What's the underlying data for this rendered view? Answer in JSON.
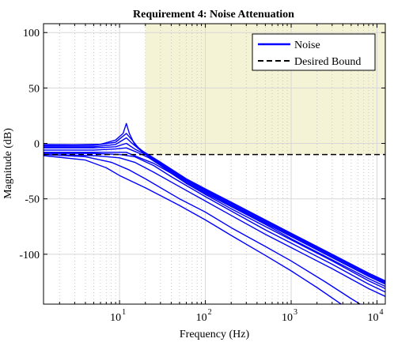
{
  "chart_data": {
    "type": "line",
    "title": "Requirement 4: Noise Attenuation",
    "xlabel": "Frequency (Hz)",
    "ylabel": "Magnitude (dB)",
    "xscale": "log",
    "xlim": [
      1.3,
      12500
    ],
    "ylim": [
      -145,
      108
    ],
    "grid": true,
    "legend_position": "top-right",
    "y_ticks": [
      {
        "value": 100,
        "label": "100"
      },
      {
        "value": 50,
        "label": "50"
      },
      {
        "value": 0,
        "label": "0"
      },
      {
        "value": -50,
        "label": "-50"
      },
      {
        "value": -100,
        "label": "-100"
      }
    ],
    "x_ticks": [
      {
        "value": 10,
        "label": "10",
        "exp": "1"
      },
      {
        "value": 100,
        "label": "10",
        "exp": "2"
      },
      {
        "value": 1000,
        "label": "10",
        "exp": "3"
      },
      {
        "value": 10000,
        "label": "10",
        "exp": "4"
      }
    ],
    "shaded_region": {
      "x_from": 20,
      "x_to": 12500,
      "y_from": -10,
      "y_to": 108,
      "color": "#f5f3d6"
    },
    "bound": {
      "name": "Desired Bound",
      "y": -10,
      "color": "#000000",
      "dash": true
    },
    "noise_color": "#0000ff",
    "series": [
      {
        "name": "Noise",
        "points": [
          [
            1.3,
            -1
          ],
          [
            3,
            -1.2
          ],
          [
            6,
            -0.8
          ],
          [
            9,
            3
          ],
          [
            11,
            9
          ],
          [
            12,
            18
          ],
          [
            13,
            9
          ],
          [
            15,
            -1
          ],
          [
            20,
            -9
          ],
          [
            30,
            -17
          ],
          [
            60,
            -32
          ],
          [
            100,
            -41
          ],
          [
            200,
            -53
          ],
          [
            500,
            -69
          ],
          [
            1000,
            -81
          ],
          [
            3000,
            -100
          ],
          [
            8000,
            -117
          ],
          [
            12500,
            -124
          ]
        ]
      },
      {
        "points": [
          [
            1.3,
            -2
          ],
          [
            5,
            -1.8
          ],
          [
            9,
            1
          ],
          [
            12,
            9
          ],
          [
            14,
            3
          ],
          [
            17,
            -5
          ],
          [
            30,
            -17
          ],
          [
            60,
            -33
          ],
          [
            100,
            -42
          ],
          [
            200,
            -54
          ],
          [
            500,
            -70
          ],
          [
            1000,
            -82
          ],
          [
            3000,
            -101
          ],
          [
            8000,
            -118
          ],
          [
            12500,
            -125
          ]
        ]
      },
      {
        "points": [
          [
            1.3,
            -3
          ],
          [
            5,
            -3
          ],
          [
            9,
            -1
          ],
          [
            12,
            5
          ],
          [
            14,
            0
          ],
          [
            18,
            -7
          ],
          [
            30,
            -18
          ],
          [
            60,
            -34
          ],
          [
            100,
            -43
          ],
          [
            200,
            -55
          ],
          [
            500,
            -71
          ],
          [
            1000,
            -83
          ],
          [
            3000,
            -102
          ],
          [
            8000,
            -119
          ],
          [
            12500,
            -126
          ]
        ]
      },
      {
        "points": [
          [
            1.3,
            -4
          ],
          [
            5,
            -4
          ],
          [
            9,
            -3
          ],
          [
            12,
            0
          ],
          [
            15,
            -5
          ],
          [
            20,
            -10
          ],
          [
            30,
            -19
          ],
          [
            60,
            -35
          ],
          [
            100,
            -44
          ],
          [
            200,
            -56
          ],
          [
            500,
            -72
          ],
          [
            1000,
            -84
          ],
          [
            3000,
            -103
          ],
          [
            8000,
            -120
          ],
          [
            12500,
            -127
          ]
        ]
      },
      {
        "points": [
          [
            1.3,
            -6
          ],
          [
            5,
            -6
          ],
          [
            9,
            -5
          ],
          [
            12,
            -4
          ],
          [
            16,
            -8
          ],
          [
            22,
            -13
          ],
          [
            30,
            -20
          ],
          [
            60,
            -36
          ],
          [
            100,
            -45
          ],
          [
            200,
            -57
          ],
          [
            500,
            -73
          ],
          [
            1000,
            -86
          ],
          [
            3000,
            -105
          ],
          [
            8000,
            -122
          ],
          [
            12500,
            -129
          ]
        ]
      },
      {
        "points": [
          [
            1.3,
            -8
          ],
          [
            5,
            -8
          ],
          [
            9,
            -8
          ],
          [
            12,
            -8
          ],
          [
            16,
            -12
          ],
          [
            25,
            -18
          ],
          [
            40,
            -27
          ],
          [
            60,
            -36
          ],
          [
            100,
            -46
          ],
          [
            200,
            -59
          ],
          [
            500,
            -75
          ],
          [
            1000,
            -87
          ],
          [
            3000,
            -106
          ],
          [
            8000,
            -124
          ],
          [
            12500,
            -131
          ]
        ]
      },
      {
        "points": [
          [
            1.3,
            -9
          ],
          [
            5,
            -9
          ],
          [
            10,
            -10
          ],
          [
            15,
            -12
          ],
          [
            25,
            -20
          ],
          [
            40,
            -30
          ],
          [
            60,
            -38
          ],
          [
            100,
            -48
          ],
          [
            200,
            -61
          ],
          [
            500,
            -78
          ],
          [
            1000,
            -90
          ],
          [
            3000,
            -109
          ],
          [
            8000,
            -127
          ],
          [
            12500,
            -134
          ]
        ]
      },
      {
        "points": [
          [
            1.3,
            -10
          ],
          [
            5,
            -11
          ],
          [
            10,
            -13
          ],
          [
            15,
            -17
          ],
          [
            25,
            -26
          ],
          [
            50,
            -39
          ],
          [
            100,
            -52
          ],
          [
            200,
            -65
          ],
          [
            500,
            -82
          ],
          [
            1000,
            -94
          ],
          [
            3000,
            -113
          ],
          [
            8000,
            -131
          ],
          [
            12500,
            -138
          ]
        ]
      },
      {
        "points": [
          [
            1.3,
            -10
          ],
          [
            4,
            -12
          ],
          [
            8,
            -17
          ],
          [
            13,
            -24
          ],
          [
            20,
            -32
          ],
          [
            50,
            -50
          ],
          [
            100,
            -62
          ],
          [
            200,
            -76
          ],
          [
            500,
            -93
          ],
          [
            1000,
            -106
          ],
          [
            2500,
            -125
          ],
          [
            5000,
            -140
          ],
          [
            7000,
            -147
          ]
        ]
      },
      {
        "points": [
          [
            1.3,
            -11
          ],
          [
            4,
            -15
          ],
          [
            7,
            -22
          ],
          [
            10,
            -29
          ],
          [
            20,
            -40
          ],
          [
            50,
            -56
          ],
          [
            100,
            -69
          ],
          [
            200,
            -83
          ],
          [
            500,
            -101
          ],
          [
            1000,
            -115
          ],
          [
            2000,
            -130
          ],
          [
            4000,
            -146
          ]
        ]
      }
    ]
  }
}
